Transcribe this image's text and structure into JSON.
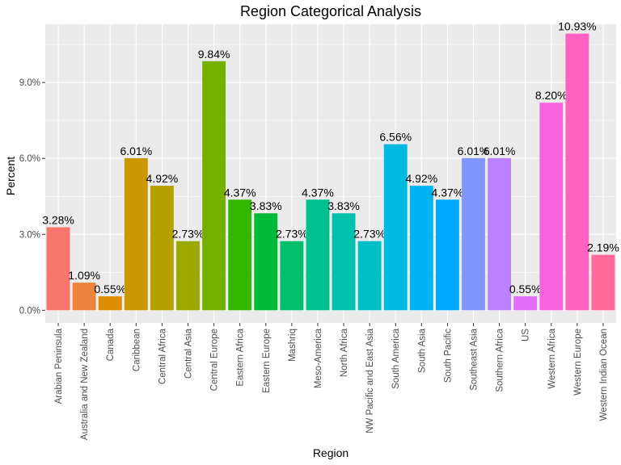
{
  "chart_data": {
    "type": "bar",
    "title": "Region Categorical Analysis",
    "xlabel": "Region",
    "ylabel": "Percent",
    "ylim": [
      -0.5,
      11.3
    ],
    "yticks": [
      0,
      3,
      6,
      9
    ],
    "ytick_labels": [
      "0.0%",
      "3.0%",
      "6.0%",
      "9.0%"
    ],
    "grid": true,
    "legend": "none",
    "categories": [
      "Arabian Peninsula",
      "Australia and New Zealand",
      "Canada",
      "Caribbean",
      "Central Africa",
      "Central Asia",
      "Central Europe",
      "Eastern Africa",
      "Eastern Europe",
      "Mashriq",
      "Meso-America",
      "North Africa",
      "NW Pacific and East Asia",
      "South America",
      "South Asia",
      "South Pacific",
      "Southeast Asia",
      "Southern Africa",
      "US",
      "Western Africa",
      "Western Europe",
      "Western Indian Ocean"
    ],
    "values": [
      3.28,
      1.09,
      0.55,
      6.01,
      4.92,
      2.73,
      9.84,
      4.37,
      3.83,
      2.73,
      4.37,
      3.83,
      2.73,
      6.56,
      4.92,
      4.37,
      6.01,
      6.01,
      0.55,
      8.2,
      10.93,
      2.19
    ],
    "labels": [
      "3.28%",
      "1.09%",
      "0.55%",
      "6.01%",
      "4.92%",
      "2.73%",
      "9.84%",
      "4.37%",
      "3.83%",
      "2.73%",
      "4.37%",
      "3.83%",
      "2.73%",
      "6.56%",
      "4.92%",
      "4.37%",
      "6.01%",
      "6.01%",
      "0.55%",
      "8.20%",
      "10.93%",
      "2.19%"
    ],
    "colors": [
      "#F8766D",
      "#EC823C",
      "#DD8D00",
      "#CA9700",
      "#B4A000",
      "#9AA800",
      "#75AF00",
      "#35B600",
      "#00BA38",
      "#00BE6B",
      "#00C08E",
      "#00C1AC",
      "#00BFC7",
      "#00BBDF",
      "#00B4F2",
      "#00A8FF",
      "#7F96FF",
      "#BC81FF",
      "#E26EF7",
      "#F863DF",
      "#FF62C0",
      "#FF6A9A"
    ],
    "panel_background": "#EBEBEB",
    "grid_color": "#FFFFFF"
  }
}
